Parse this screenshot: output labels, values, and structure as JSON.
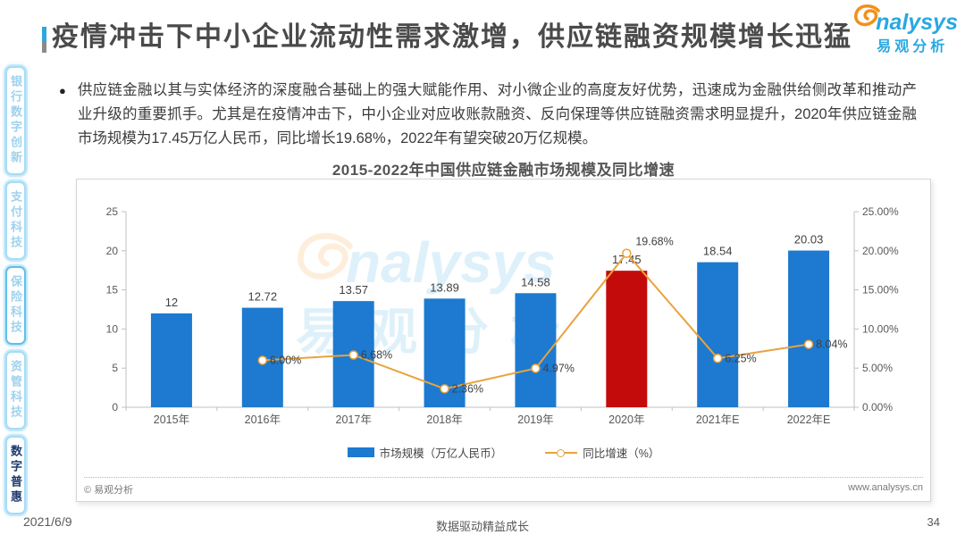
{
  "page": {
    "title": "疫情冲击下中小企业流动性需求激增，供应链融资规模增长迅猛",
    "bullet_text": "供应链金融以其与实体经济的深度融合基础上的强大赋能作用、对小微企业的高度友好优势，迅速成为金融供给侧改革和推动产业升级的重要抓手。尤其是在疫情冲击下，中小企业对应收账款融资、反向保理等供应链融资需求明显提升，2020年供应链金融市场规模为17.45万亿人民币，同比增长19.68%，2022年有望突破20万亿规模。",
    "footer": {
      "date": "2021/6/9",
      "slogan": "数据驱动精益成长",
      "page_number": "34"
    }
  },
  "logo": {
    "brand_suffix": "nalysys",
    "brand_cn": "易观分析",
    "blue": "#29A8E0",
    "orange": "#F39019"
  },
  "watermark": {
    "brand_suffix": "nalysys",
    "brand_cn": "易观分析"
  },
  "sidebar": {
    "items": [
      {
        "label": "银行数字创新",
        "active": false,
        "emphasized": false
      },
      {
        "label": "支付科技",
        "active": false,
        "emphasized": false
      },
      {
        "label": "保险科技",
        "active": false,
        "emphasized": true
      },
      {
        "label": "资管科技",
        "active": false,
        "emphasized": false
      },
      {
        "label": "数字普惠",
        "active": true,
        "emphasized": false
      }
    ]
  },
  "chart_panel": {
    "source": "© 易观分析",
    "website": "www.analysys.cn"
  },
  "chart_data": {
    "type": "bar+line combo",
    "title": "2015-2022年中国供应链金融市场规模及同比增速",
    "categories": [
      "2015年",
      "2016年",
      "2017年",
      "2018年",
      "2019年",
      "2020年",
      "2021年E",
      "2022年E"
    ],
    "series": [
      {
        "name": "市场规模（万亿人民币）",
        "type": "bar",
        "axis": "left",
        "values": [
          12,
          12.72,
          13.57,
          13.89,
          14.58,
          17.45,
          18.54,
          20.03
        ],
        "labels": [
          "12",
          "12.72",
          "13.57",
          "13.89",
          "14.58",
          "17.45",
          "18.54",
          "20.03"
        ],
        "color": "#1D7AD0",
        "highlight_index": 5,
        "highlight_color": "#C40B0B"
      },
      {
        "name": "同比增速（%）",
        "type": "line",
        "axis": "right",
        "values": [
          null,
          6.0,
          6.68,
          2.36,
          4.97,
          19.68,
          6.25,
          8.04
        ],
        "labels": [
          null,
          "6.00%",
          "6.68%",
          "2.36%",
          "4.97%",
          "19.68%",
          "6.25%",
          "8.04%"
        ],
        "color": "#E8A33D",
        "marker": "open-circle"
      }
    ],
    "left_axis": {
      "min": 0,
      "max": 25,
      "tick_labels": [
        "0",
        "5",
        "10",
        "15",
        "20",
        "25"
      ]
    },
    "right_axis": {
      "min": 0,
      "max": 25,
      "tick_labels": [
        "0.00%",
        "5.00%",
        "10.00%",
        "15.00%",
        "20.00%",
        "25.00%"
      ]
    },
    "grid": false,
    "legend_position": "bottom"
  }
}
